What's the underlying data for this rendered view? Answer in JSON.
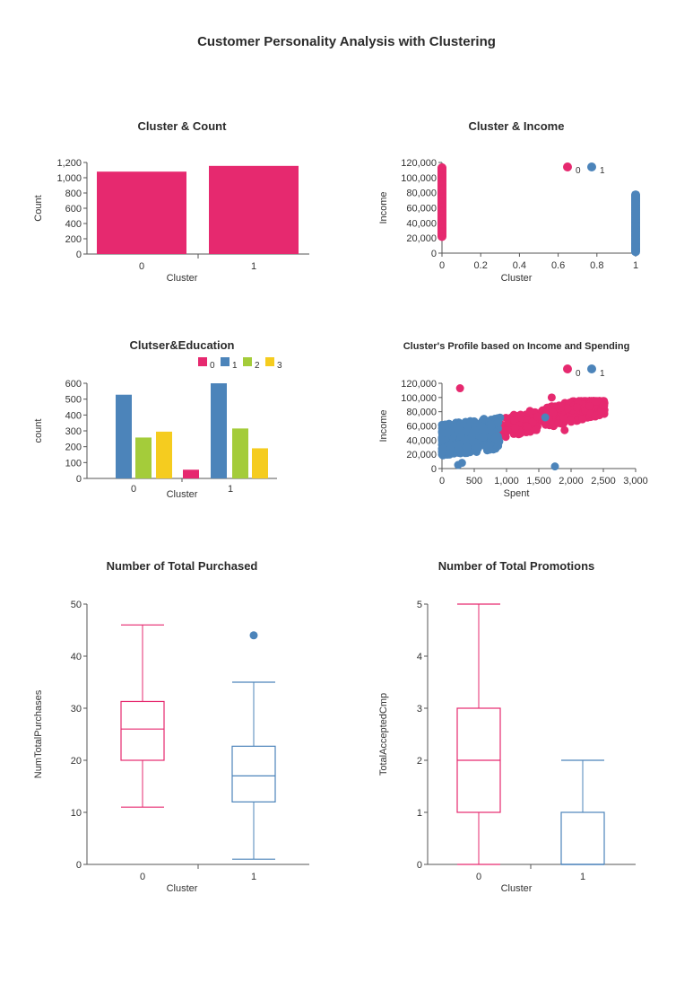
{
  "page_title": "Customer Personality Analysis with Clustering",
  "colors": {
    "c0": "#e6296f",
    "c1": "#4c84ba",
    "c2": "#a4cc3a",
    "c3": "#f5cc1f"
  },
  "chart_data": [
    {
      "id": "count",
      "type": "bar",
      "title": "Cluster & Count",
      "xlabel": "Cluster",
      "ylabel": "Count",
      "categories": [
        "0",
        "1"
      ],
      "values": [
        1080,
        1155
      ],
      "ylim": [
        0,
        1200
      ],
      "yticks": [
        0,
        200,
        400,
        600,
        800,
        1000,
        1200
      ],
      "ytick_labels": [
        "0",
        "200",
        "400",
        "600",
        "800",
        "1,000",
        "1,200"
      ]
    },
    {
      "id": "income",
      "type": "scatter",
      "title": "Cluster & Income",
      "xlabel": "Cluster",
      "ylabel": "Income",
      "xlim": [
        0,
        1
      ],
      "ylim": [
        0,
        120000
      ],
      "xticks": [
        0,
        0.2,
        0.4,
        0.6,
        0.8,
        1
      ],
      "xtick_labels": [
        "0",
        "0.2",
        "0.4",
        "0.6",
        "0.8",
        "1"
      ],
      "yticks": [
        0,
        20000,
        40000,
        60000,
        80000,
        100000,
        120000
      ],
      "ytick_labels": [
        "0",
        "20,000",
        "40,000",
        "60,000",
        "80,000",
        "100,000",
        "120,000"
      ],
      "legend": {
        "position": "top-right",
        "entries": [
          "0",
          "1"
        ]
      },
      "series": [
        {
          "name": "0",
          "x": 0,
          "y_range": [
            22000,
            113000
          ]
        },
        {
          "name": "1",
          "x": 1,
          "y_range": [
            2000,
            77000
          ]
        }
      ]
    },
    {
      "id": "education",
      "type": "bar",
      "title": "Clutser&Education",
      "xlabel": "Cluster",
      "ylabel": "count",
      "categories": [
        "0",
        "1"
      ],
      "ylim": [
        0,
        600
      ],
      "yticks": [
        0,
        100,
        200,
        300,
        400,
        500,
        600
      ],
      "legend": {
        "position": "top",
        "entries": [
          "0",
          "1",
          "2",
          "3"
        ]
      },
      "series": [
        {
          "name": "0",
          "values": [
            0,
            55
          ]
        },
        {
          "name": "1",
          "values": [
            528,
            600
          ]
        },
        {
          "name": "2",
          "values": [
            258,
            315
          ]
        },
        {
          "name": "3",
          "values": [
            295,
            190
          ]
        }
      ]
    },
    {
      "id": "profile",
      "type": "scatter",
      "title": "Cluster's Profile based on Income and Spending",
      "xlabel": "Spent",
      "ylabel": "Income",
      "xlim": [
        0,
        3000
      ],
      "ylim": [
        0,
        120000
      ],
      "xticks": [
        0,
        500,
        1000,
        1500,
        2000,
        2500,
        3000
      ],
      "xtick_labels": [
        "0",
        "500",
        "1,000",
        "1,500",
        "2,000",
        "2,500",
        "3,000"
      ],
      "yticks": [
        0,
        20000,
        40000,
        60000,
        80000,
        100000,
        120000
      ],
      "ytick_labels": [
        "0",
        "20,000",
        "40,000",
        "60,000",
        "80,000",
        "100,000",
        "120,000"
      ],
      "legend": {
        "position": "top-right",
        "entries": [
          "0",
          "1"
        ]
      },
      "series": [
        {
          "name": "0",
          "x_range": [
            100,
            2525
          ],
          "y_range": [
            22000,
            113000
          ],
          "points": [
            [
              280,
              113000
            ],
            [
              1700,
              100000
            ],
            [
              2500,
              89000
            ],
            [
              1900,
              54000
            ],
            [
              200,
              22000
            ],
            [
              420,
              35000
            ]
          ]
        },
        {
          "name": "1",
          "x_range": [
            0,
            1750
          ],
          "y_range": [
            2000,
            77000
          ],
          "points": [
            [
              1750,
              3000
            ],
            [
              1600,
              72000
            ],
            [
              250,
              5000
            ],
            [
              310,
              8000
            ],
            [
              650,
              70000
            ]
          ]
        }
      ]
    },
    {
      "id": "purchases",
      "type": "box",
      "title": "Number of Total Purchased",
      "xlabel": "Cluster",
      "ylabel": "NumTotalPurchases",
      "categories": [
        "0",
        "1"
      ],
      "ylim": [
        0,
        50
      ],
      "yticks": [
        0,
        10,
        20,
        30,
        40,
        50
      ],
      "boxes": [
        {
          "name": "0",
          "min": 11,
          "q1": 20,
          "median": 26,
          "q3": 31.3,
          "max": 46,
          "outliers": []
        },
        {
          "name": "1",
          "min": 1,
          "q1": 12,
          "median": 17,
          "q3": 22.7,
          "max": 35,
          "outliers": [
            44
          ]
        }
      ]
    },
    {
      "id": "promotions",
      "type": "box",
      "title": "Number of Total Promotions",
      "xlabel": "Cluster",
      "ylabel": "TotalAcceptedCmp",
      "categories": [
        "0",
        "1"
      ],
      "ylim": [
        0,
        5
      ],
      "yticks": [
        0,
        1,
        2,
        3,
        4,
        5
      ],
      "boxes": [
        {
          "name": "0",
          "min": 0,
          "q1": 1,
          "median": 2,
          "q3": 3,
          "max": 5,
          "outliers": []
        },
        {
          "name": "1",
          "min": 0,
          "q1": 0,
          "median": 0,
          "q3": 1,
          "max": 2,
          "outliers": []
        }
      ]
    }
  ]
}
